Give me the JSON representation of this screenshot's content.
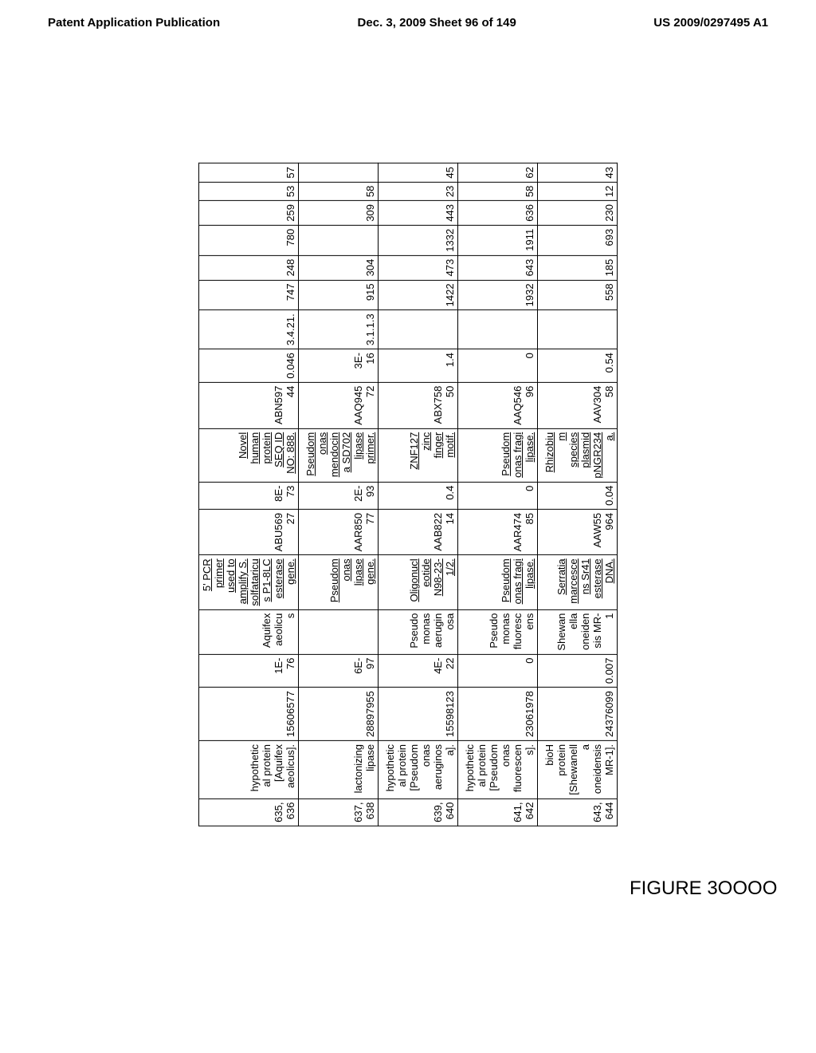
{
  "header": {
    "left": "Patent Application Publication",
    "center": "Dec. 3, 2009  Sheet 96 of 149",
    "right": "US 2009/0297495 A1"
  },
  "figure_label": "FIGURE\n3OOOO",
  "table": {
    "rows": [
      {
        "c0": "635,\n636",
        "c1": "hypothetic\nal protein\n[Aquifex\naeolicus].",
        "c2": "15606577",
        "c3": "1E-76",
        "c4": "Aquifex\naeolicu\ns",
        "c5": "5' PCR\nprimer\nused to\namplify S.\nsolfataricu\ns P1-8LC\nesterase\ngene.",
        "c6": "ABU569\n27",
        "c7": "8E-73",
        "c8": "Novel\nhuman\nprotein\nSEQ ID\nNO: 888.",
        "c9": "ABN597\n44",
        "c10": "0.046",
        "c11": "3.4.21.",
        "c12": "747",
        "c13": "248",
        "c14": "780",
        "c15": "259",
        "c16": "53",
        "c17": "57"
      },
      {
        "c0": "637,\n638",
        "c1": "lactonizing\nlipase",
        "c2": "28897955",
        "c3": "6E-97",
        "c4": "",
        "c5": "Pseudom\nonas\nlipase\ngene.",
        "c6": "AAR850\n77",
        "c7": "2E-93",
        "c8": "Pseudom\nonas\nmendocin\na SD702\nlipase\nprimer.",
        "c9": "AAQ945\n72",
        "c10": "3E-16",
        "c11": "3.1.1.3",
        "c12": "915",
        "c13": "304",
        "c14": "",
        "c15": "309",
        "c16": "58",
        "c17": ""
      },
      {
        "c0": "639,\n640",
        "c1": "hypothetic\nal protein\n[Pseudom\nonas\naeruginos\na].",
        "c2": "15598123",
        "c3": "4E-22",
        "c4": "Pseudo\nmonas\naerugin\nosa",
        "c5": "Oligonucl\neotide\nN98-23-\n1/2.",
        "c6": "AAB822\n14",
        "c7": "0.4",
        "c8": "ZNF127\nzinc\nfinger\nmotif.",
        "c9": "ABX758\n50",
        "c10": "1.4",
        "c11": "",
        "c12": "1422",
        "c13": "473",
        "c14": "1332",
        "c15": "443",
        "c16": "23",
        "c17": "45"
      },
      {
        "c0": "641,\n642",
        "c1": "hypothetic\nal protein\n[Pseudom\nonas\nfluorescen\ns].",
        "c2": "23061978",
        "c3": "0",
        "c4": "Pseudo\nmonas\nfluoresc\nens",
        "c5": "Pseudom\nonas fragi\nlipase.",
        "c6": "AAR474\n85",
        "c7": "0",
        "c8": "Pseudom\nonas fragi\nlipase.",
        "c9": "AAQ546\n96",
        "c10": "0",
        "c11": "",
        "c12": "1932",
        "c13": "643",
        "c14": "1911",
        "c15": "636",
        "c16": "58",
        "c17": "62"
      },
      {
        "c0": "643,\n644",
        "c1": "bioH\nprotein\n[Shewanell\na\noneidensis\nMR-1].",
        "c2": "24376099",
        "c3": "0.007",
        "c4": "Shewan\nella\noneiden\nsis MR-\n1",
        "c5": "Serratia\nmarcesce\nns Sr41\nesterase\nDNA.",
        "c6": "AAW55\n964",
        "c7": "0.04",
        "c8": "Rhizobiu\nm\nspecies\nplasmid\npNGR234\na.",
        "c9": "AAV304\n58",
        "c10": "0.54",
        "c11": "",
        "c12": "558",
        "c13": "185",
        "c14": "693",
        "c15": "230",
        "c16": "12",
        "c17": "43"
      }
    ]
  }
}
